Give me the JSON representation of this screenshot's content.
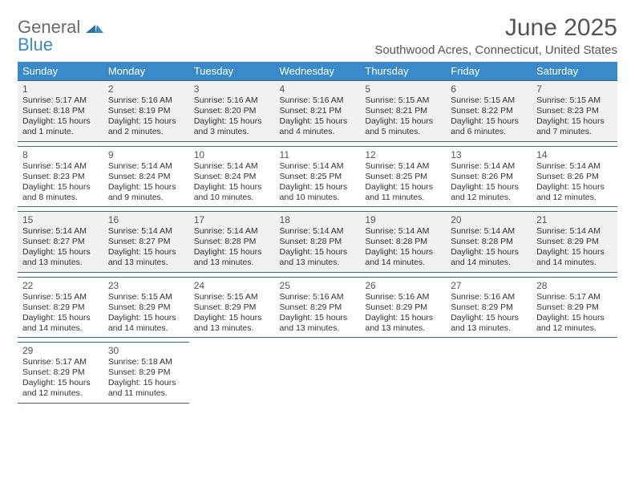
{
  "brand": {
    "line1": "General",
    "line2": "Blue"
  },
  "title": "June 2025",
  "location": "Southwood Acres, Connecticut, United States",
  "colors": {
    "header_bg": "#3a8ac9",
    "header_text": "#ffffff",
    "cell_border": "#3a6a8a",
    "shaded_row": "#f1f1f1",
    "text": "#333333"
  },
  "font": {
    "family": "Arial",
    "title_size_pt": 22,
    "header_size_pt": 10,
    "body_size_pt": 8
  },
  "day_names": [
    "Sunday",
    "Monday",
    "Tuesday",
    "Wednesday",
    "Thursday",
    "Friday",
    "Saturday"
  ],
  "weeks": [
    {
      "shaded": true,
      "cells": [
        {
          "n": "1",
          "sr": "Sunrise: 5:17 AM",
          "ss": "Sunset: 8:18 PM",
          "d1": "Daylight: 15 hours",
          "d2": "and 1 minute."
        },
        {
          "n": "2",
          "sr": "Sunrise: 5:16 AM",
          "ss": "Sunset: 8:19 PM",
          "d1": "Daylight: 15 hours",
          "d2": "and 2 minutes."
        },
        {
          "n": "3",
          "sr": "Sunrise: 5:16 AM",
          "ss": "Sunset: 8:20 PM",
          "d1": "Daylight: 15 hours",
          "d2": "and 3 minutes."
        },
        {
          "n": "4",
          "sr": "Sunrise: 5:16 AM",
          "ss": "Sunset: 8:21 PM",
          "d1": "Daylight: 15 hours",
          "d2": "and 4 minutes."
        },
        {
          "n": "5",
          "sr": "Sunrise: 5:15 AM",
          "ss": "Sunset: 8:21 PM",
          "d1": "Daylight: 15 hours",
          "d2": "and 5 minutes."
        },
        {
          "n": "6",
          "sr": "Sunrise: 5:15 AM",
          "ss": "Sunset: 8:22 PM",
          "d1": "Daylight: 15 hours",
          "d2": "and 6 minutes."
        },
        {
          "n": "7",
          "sr": "Sunrise: 5:15 AM",
          "ss": "Sunset: 8:23 PM",
          "d1": "Daylight: 15 hours",
          "d2": "and 7 minutes."
        }
      ]
    },
    {
      "shaded": false,
      "cells": [
        {
          "n": "8",
          "sr": "Sunrise: 5:14 AM",
          "ss": "Sunset: 8:23 PM",
          "d1": "Daylight: 15 hours",
          "d2": "and 8 minutes."
        },
        {
          "n": "9",
          "sr": "Sunrise: 5:14 AM",
          "ss": "Sunset: 8:24 PM",
          "d1": "Daylight: 15 hours",
          "d2": "and 9 minutes."
        },
        {
          "n": "10",
          "sr": "Sunrise: 5:14 AM",
          "ss": "Sunset: 8:24 PM",
          "d1": "Daylight: 15 hours",
          "d2": "and 10 minutes."
        },
        {
          "n": "11",
          "sr": "Sunrise: 5:14 AM",
          "ss": "Sunset: 8:25 PM",
          "d1": "Daylight: 15 hours",
          "d2": "and 10 minutes."
        },
        {
          "n": "12",
          "sr": "Sunrise: 5:14 AM",
          "ss": "Sunset: 8:25 PM",
          "d1": "Daylight: 15 hours",
          "d2": "and 11 minutes."
        },
        {
          "n": "13",
          "sr": "Sunrise: 5:14 AM",
          "ss": "Sunset: 8:26 PM",
          "d1": "Daylight: 15 hours",
          "d2": "and 12 minutes."
        },
        {
          "n": "14",
          "sr": "Sunrise: 5:14 AM",
          "ss": "Sunset: 8:26 PM",
          "d1": "Daylight: 15 hours",
          "d2": "and 12 minutes."
        }
      ]
    },
    {
      "shaded": true,
      "cells": [
        {
          "n": "15",
          "sr": "Sunrise: 5:14 AM",
          "ss": "Sunset: 8:27 PM",
          "d1": "Daylight: 15 hours",
          "d2": "and 13 minutes."
        },
        {
          "n": "16",
          "sr": "Sunrise: 5:14 AM",
          "ss": "Sunset: 8:27 PM",
          "d1": "Daylight: 15 hours",
          "d2": "and 13 minutes."
        },
        {
          "n": "17",
          "sr": "Sunrise: 5:14 AM",
          "ss": "Sunset: 8:28 PM",
          "d1": "Daylight: 15 hours",
          "d2": "and 13 minutes."
        },
        {
          "n": "18",
          "sr": "Sunrise: 5:14 AM",
          "ss": "Sunset: 8:28 PM",
          "d1": "Daylight: 15 hours",
          "d2": "and 13 minutes."
        },
        {
          "n": "19",
          "sr": "Sunrise: 5:14 AM",
          "ss": "Sunset: 8:28 PM",
          "d1": "Daylight: 15 hours",
          "d2": "and 14 minutes."
        },
        {
          "n": "20",
          "sr": "Sunrise: 5:14 AM",
          "ss": "Sunset: 8:28 PM",
          "d1": "Daylight: 15 hours",
          "d2": "and 14 minutes."
        },
        {
          "n": "21",
          "sr": "Sunrise: 5:14 AM",
          "ss": "Sunset: 8:29 PM",
          "d1": "Daylight: 15 hours",
          "d2": "and 14 minutes."
        }
      ]
    },
    {
      "shaded": false,
      "cells": [
        {
          "n": "22",
          "sr": "Sunrise: 5:15 AM",
          "ss": "Sunset: 8:29 PM",
          "d1": "Daylight: 15 hours",
          "d2": "and 14 minutes."
        },
        {
          "n": "23",
          "sr": "Sunrise: 5:15 AM",
          "ss": "Sunset: 8:29 PM",
          "d1": "Daylight: 15 hours",
          "d2": "and 14 minutes."
        },
        {
          "n": "24",
          "sr": "Sunrise: 5:15 AM",
          "ss": "Sunset: 8:29 PM",
          "d1": "Daylight: 15 hours",
          "d2": "and 13 minutes."
        },
        {
          "n": "25",
          "sr": "Sunrise: 5:16 AM",
          "ss": "Sunset: 8:29 PM",
          "d1": "Daylight: 15 hours",
          "d2": "and 13 minutes."
        },
        {
          "n": "26",
          "sr": "Sunrise: 5:16 AM",
          "ss": "Sunset: 8:29 PM",
          "d1": "Daylight: 15 hours",
          "d2": "and 13 minutes."
        },
        {
          "n": "27",
          "sr": "Sunrise: 5:16 AM",
          "ss": "Sunset: 8:29 PM",
          "d1": "Daylight: 15 hours",
          "d2": "and 13 minutes."
        },
        {
          "n": "28",
          "sr": "Sunrise: 5:17 AM",
          "ss": "Sunset: 8:29 PM",
          "d1": "Daylight: 15 hours",
          "d2": "and 12 minutes."
        }
      ]
    },
    {
      "shaded": false,
      "cells": [
        {
          "n": "29",
          "sr": "Sunrise: 5:17 AM",
          "ss": "Sunset: 8:29 PM",
          "d1": "Daylight: 15 hours",
          "d2": "and 12 minutes."
        },
        {
          "n": "30",
          "sr": "Sunrise: 5:18 AM",
          "ss": "Sunset: 8:29 PM",
          "d1": "Daylight: 15 hours",
          "d2": "and 11 minutes."
        },
        {
          "empty": true
        },
        {
          "empty": true
        },
        {
          "empty": true
        },
        {
          "empty": true
        },
        {
          "empty": true
        }
      ]
    }
  ]
}
